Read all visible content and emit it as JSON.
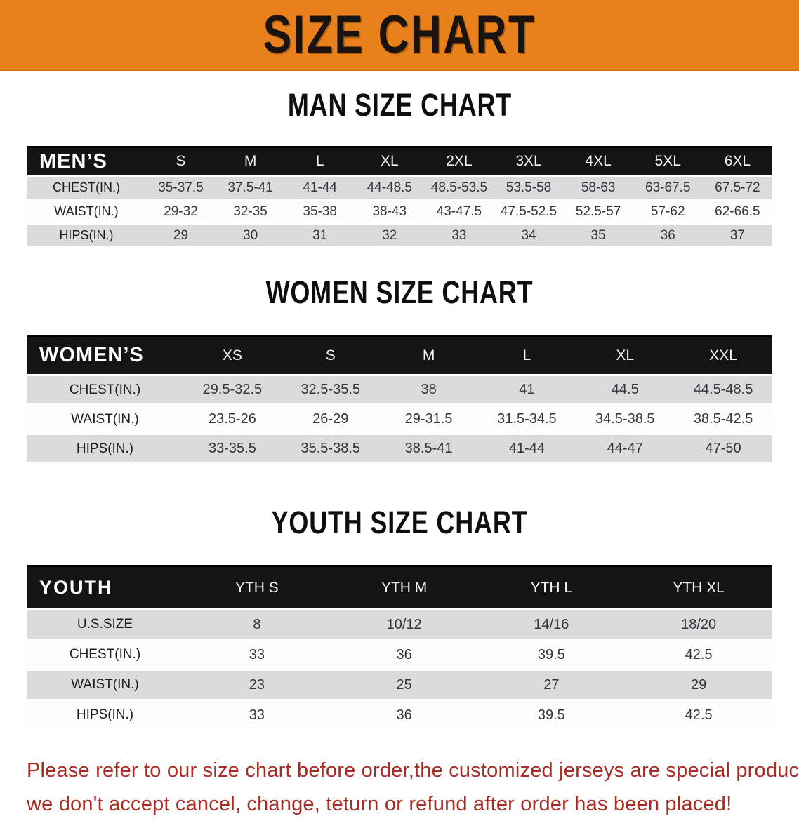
{
  "banner": {
    "title": "SIZE CHART",
    "bg_color": "#E8811B",
    "text_color": "#1A1410"
  },
  "colors": {
    "table_header_bg": "#141414",
    "table_header_text": "#FFFFFF",
    "shaded_row_bg": "#DBDBDD",
    "plain_row_bg": "#FDFDFD",
    "disclaimer_red": "#A92B22"
  },
  "sections": [
    {
      "id": "men",
      "heading": "MAN SIZE CHART",
      "table": {
        "header_label": "MEN’S",
        "columns": [
          "S",
          "M",
          "L",
          "XL",
          "2XL",
          "3XL",
          "4XL",
          "5XL",
          "6XL"
        ],
        "rows": [
          {
            "label": "CHEST(IN.)",
            "values": [
              "35-37.5",
              "37.5-41",
              "41-44",
              "44-48.5",
              "48.5-53.5",
              "53.5-58",
              "58-63",
              "63-67.5",
              "67.5-72"
            ]
          },
          {
            "label": "WAIST(IN.)",
            "values": [
              "29-32",
              "32-35",
              "35-38",
              "38-43",
              "43-47.5",
              "47.5-52.5",
              "52.5-57",
              "57-62",
              "62-66.5"
            ]
          },
          {
            "label": "HIPS(IN.)",
            "values": [
              "29",
              "30",
              "31",
              "32",
              "33",
              "34",
              "35",
              "36",
              "37"
            ]
          }
        ]
      }
    },
    {
      "id": "women",
      "heading": "WOMEN SIZE CHART",
      "table": {
        "header_label": "WOMEN’S",
        "columns": [
          "XS",
          "S",
          "M",
          "L",
          "XL",
          "XXL"
        ],
        "rows": [
          {
            "label": "CHEST(IN.)",
            "values": [
              "29.5-32.5",
              "32.5-35.5",
              "38",
              "41",
              "44.5",
              "44.5-48.5"
            ]
          },
          {
            "label": "WAIST(IN.)",
            "values": [
              "23.5-26",
              "26-29",
              "29-31.5",
              "31.5-34.5",
              "34.5-38.5",
              "38.5-42.5"
            ]
          },
          {
            "label": "HIPS(IN.)",
            "values": [
              "33-35.5",
              "35.5-38.5",
              "38.5-41",
              "41-44",
              "44-47",
              "47-50"
            ]
          }
        ]
      }
    },
    {
      "id": "youth",
      "heading": "YOUTH SIZE CHART",
      "table": {
        "header_label": "YOUTH",
        "columns": [
          "YTH S",
          "YTH M",
          "YTH L",
          "YTH XL"
        ],
        "rows": [
          {
            "label": "U.S.SIZE",
            "values": [
              "8",
              "10/12",
              "14/16",
              "18/20"
            ]
          },
          {
            "label": "CHEST(IN.)",
            "values": [
              "33",
              "36",
              "39.5",
              "42.5"
            ]
          },
          {
            "label": "WAIST(IN.)",
            "values": [
              "23",
              "25",
              "27",
              "29"
            ]
          },
          {
            "label": "HIPS(IN.)",
            "values": [
              "33",
              "36",
              "39.5",
              "42.5"
            ]
          }
        ]
      }
    }
  ],
  "disclaimer": {
    "line1": "Please refer to our size chart before order,the customized jerseys are special products,",
    "line2": "we don't accept cancel, change, teturn or refund after order has been placed!"
  }
}
